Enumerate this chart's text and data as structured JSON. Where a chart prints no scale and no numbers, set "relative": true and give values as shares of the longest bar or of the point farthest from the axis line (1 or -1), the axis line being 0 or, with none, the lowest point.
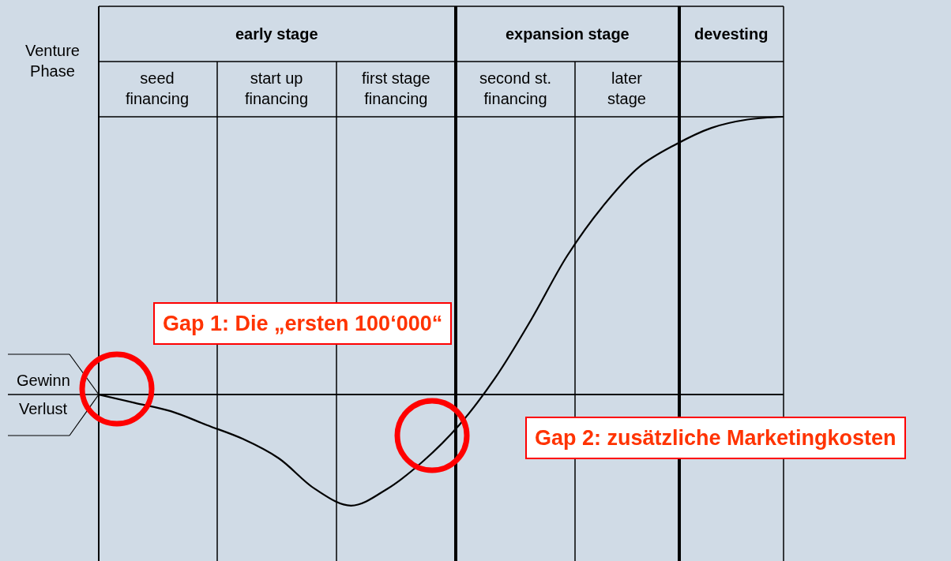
{
  "chart_data": {
    "type": "line",
    "relative": true,
    "categories": [
      null,
      null,
      null,
      null,
      null,
      null,
      null,
      null,
      null,
      null,
      null,
      null,
      null,
      null,
      null,
      null,
      null,
      null,
      null,
      null
    ],
    "series": [
      {
        "color": "#000000",
        "values": [
          0,
          -0.03,
          -0.06,
          -0.11,
          -0.16,
          -0.23,
          -0.34,
          -0.4,
          -0.34,
          -0.24,
          -0.11,
          0.06,
          0.27,
          0.5,
          0.68,
          0.82,
          0.9,
          0.96,
          0.99,
          1
        ]
      }
    ],
    "annotations": [
      "Venture Phase",
      "early stage",
      "expansion stage",
      "devesting",
      "seed financing",
      "start up financing",
      "first stage financing",
      "second st. financing",
      "later stage",
      "Gewinn",
      "Verlust",
      "Gap 1: Die „ersten 100‘000“",
      "Gap 2: zusätzliche Marketingkosten"
    ],
    "marker": "none",
    "line_style": "solid"
  }
}
